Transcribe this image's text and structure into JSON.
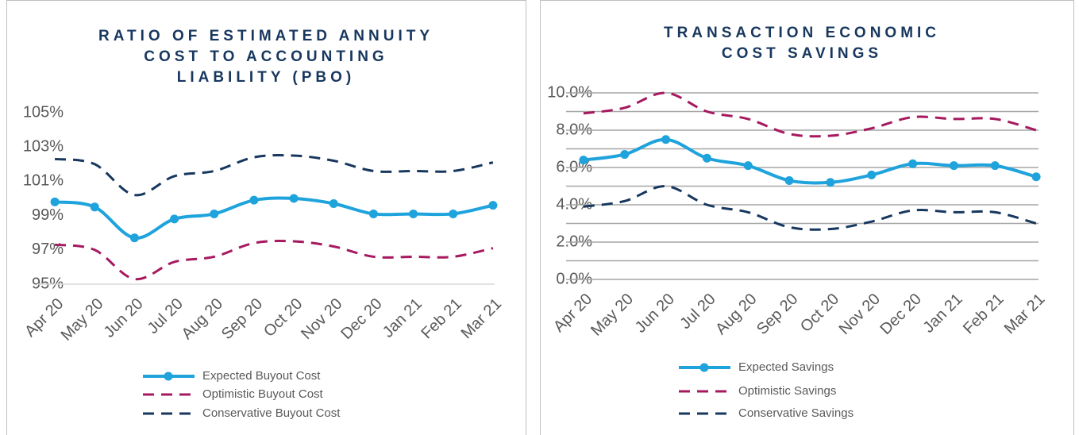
{
  "chart_data": [
    {
      "type": "line",
      "title": [
        "RATIO OF ESTIMATED ANNUITY",
        "COST TO ACCOUNTING",
        "LIABILITY (PBO)"
      ],
      "categories": [
        "Apr 20",
        "May 20",
        "Jun 20",
        "Jul 20",
        "Aug 20",
        "Sep 20",
        "Oct 20",
        "Nov 20",
        "Dec 20",
        "Jan 21",
        "Feb 21",
        "Mar 21"
      ],
      "ylim": [
        95,
        105
      ],
      "yticks": [
        {
          "value": 95,
          "label": "95%"
        },
        {
          "value": 97,
          "label": "97%"
        },
        {
          "value": 99,
          "label": "99%"
        },
        {
          "value": 101,
          "label": "101%"
        },
        {
          "value": 103,
          "label": "103%"
        },
        {
          "value": 105,
          "label": "105%"
        }
      ],
      "grid": false,
      "legend": "bottom",
      "series": [
        {
          "name": "Expected Buyout Cost",
          "color": "#1fa3dc",
          "style": "solid",
          "markers": true,
          "values": [
            99.8,
            99.5,
            97.7,
            98.8,
            99.1,
            99.9,
            100.0,
            99.7,
            99.1,
            99.1,
            99.1,
            99.6
          ]
        },
        {
          "name": "Optimistic Buyout Cost",
          "color": "#a6195f",
          "style": "dashed",
          "markers": false,
          "values": [
            97.3,
            97.0,
            95.3,
            96.3,
            96.6,
            97.4,
            97.5,
            97.2,
            96.6,
            96.6,
            96.6,
            97.1
          ]
        },
        {
          "name": "Conservative Buyout Cost",
          "color": "#17375e",
          "style": "dashed",
          "markers": false,
          "values": [
            102.3,
            102.0,
            100.2,
            101.3,
            101.6,
            102.4,
            102.5,
            102.2,
            101.6,
            101.6,
            101.6,
            102.1
          ]
        }
      ]
    },
    {
      "type": "line",
      "title": [
        "TRANSACTION ECONOMIC",
        "COST SAVINGS"
      ],
      "categories": [
        "Apr 20",
        "May 20",
        "Jun 20",
        "Jul 20",
        "Aug 20",
        "Sep 20",
        "Oct 20",
        "Nov 20",
        "Dec 20",
        "Jan 21",
        "Feb 21",
        "Mar 21"
      ],
      "ylim": [
        0,
        10
      ],
      "yticks": [
        {
          "value": 0,
          "label": "0.0%"
        },
        {
          "value": 2,
          "label": "2.0%"
        },
        {
          "value": 4,
          "label": "4.0%"
        },
        {
          "value": 6,
          "label": "6.0%"
        },
        {
          "value": 8,
          "label": "8.0%"
        },
        {
          "value": 10,
          "label": "10.0%"
        }
      ],
      "minor_grid_ticks": [
        1,
        3,
        5,
        7,
        9
      ],
      "grid": true,
      "legend": "bottom",
      "series": [
        {
          "name": "Expected Savings",
          "color": "#1fa3dc",
          "style": "solid",
          "markers": true,
          "values": [
            6.4,
            6.7,
            7.5,
            6.5,
            6.1,
            5.3,
            5.2,
            5.6,
            6.2,
            6.1,
            6.1,
            5.5
          ]
        },
        {
          "name": "Optimistic Savings",
          "color": "#a6195f",
          "style": "dashed",
          "markers": false,
          "values": [
            8.9,
            9.2,
            10.0,
            9.0,
            8.6,
            7.8,
            7.7,
            8.1,
            8.7,
            8.6,
            8.6,
            8.0
          ]
        },
        {
          "name": "Conservative Savings",
          "color": "#17375e",
          "style": "dashed",
          "markers": false,
          "values": [
            3.9,
            4.2,
            5.0,
            4.0,
            3.6,
            2.8,
            2.7,
            3.1,
            3.7,
            3.6,
            3.6,
            3.0
          ]
        }
      ]
    }
  ]
}
